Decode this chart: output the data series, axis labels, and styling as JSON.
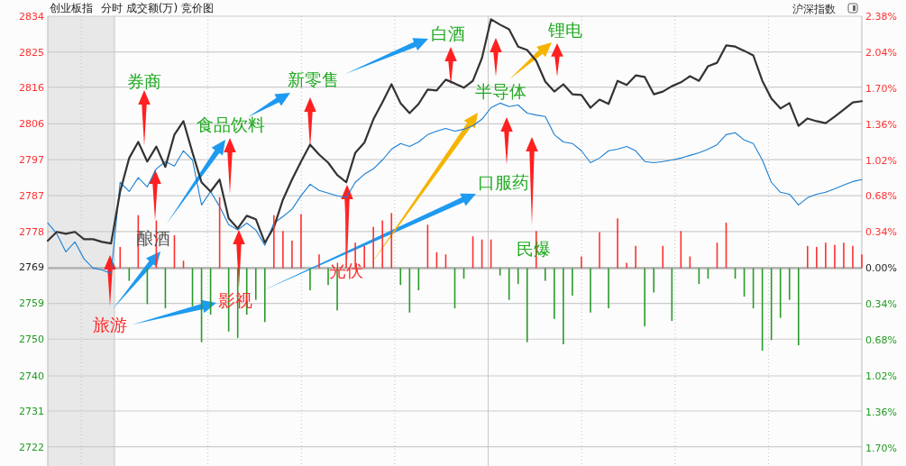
{
  "chart_data": {
    "type": "line",
    "title": "创业板指",
    "subtitle": "分时 成交额(万) 竞价图",
    "categories": [
      null,
      null,
      null,
      null,
      null,
      null,
      null,
      null,
      null,
      null,
      null,
      null,
      null,
      null,
      null,
      null,
      null,
      null,
      null,
      null,
      null,
      null,
      null,
      null,
      null,
      null,
      null,
      null,
      null,
      null,
      null,
      null,
      null,
      null,
      null,
      null,
      null,
      null,
      null,
      null,
      null,
      null,
      null,
      null,
      null,
      null,
      null,
      null,
      null,
      null,
      null,
      null,
      null,
      null,
      null,
      null,
      null,
      null,
      null,
      null,
      null,
      null,
      null,
      null,
      null,
      null,
      null,
      null,
      null,
      null,
      null,
      null,
      null,
      null,
      null,
      null,
      null,
      null,
      null,
      null,
      null,
      null,
      null,
      null,
      null,
      null,
      null,
      null,
      null,
      null,
      null
    ],
    "ylim": [
      2717,
      2834
    ],
    "yticks": [
      2722,
      {
        "value": 2731.3,
        "label": "2731"
      },
      {
        "value": 2740.45,
        "label": "2740"
      },
      2750,
      {
        "value": 2759.3,
        "label": "2759"
      },
      {
        "value": 2768.7,
        "label": "2769"
      },
      2778,
      {
        "value": 2787.3,
        "label": "2787"
      },
      {
        "value": 2796.7,
        "label": "2797"
      },
      2806,
      {
        "value": 2815.55,
        "label": "2816"
      },
      {
        "value": 2824.7,
        "label": "2825"
      },
      2834
    ],
    "y2lim": [
      -1.87,
      2.38
    ],
    "y2ticks": [
      {
        "value": -1.7,
        "label": "1.70%"
      },
      {
        "value": -1.36,
        "label": "1.36%"
      },
      {
        "value": -1.02,
        "label": "1.02%"
      },
      {
        "value": -0.68,
        "label": "0.68%"
      },
      {
        "value": -0.34,
        "label": "0.34%"
      },
      {
        "value": 0,
        "label": "0.00%"
      },
      {
        "value": 0.34,
        "label": "0.34%"
      },
      {
        "value": 0.68,
        "label": "0.68%"
      },
      {
        "value": 1.02,
        "label": "1.02%"
      },
      {
        "value": 1.36,
        "label": "1.36%"
      },
      {
        "value": 1.7,
        "label": "1.70%"
      },
      {
        "value": 2.04,
        "label": "2.04%"
      },
      {
        "value": 2.38,
        "label": "2.38%"
      }
    ],
    "grid": true,
    "ref_lines": [
      {
        "axis": "y2",
        "value": 0,
        "color": "#b4b4b4"
      }
    ],
    "series": [
      {
        "type": "bar",
        "axis": "y2",
        "color": "#ff3030",
        "values": [
          null,
          null,
          null,
          null,
          null,
          null,
          null,
          null,
          0.2,
          null,
          0.5,
          null,
          0.45,
          null,
          0.31,
          0.07,
          null,
          null,
          null,
          0.67,
          null,
          null,
          null,
          null,
          null,
          0.5,
          0.35,
          0.26,
          0.51,
          null,
          0.13,
          null,
          null,
          0.58,
          0.24,
          0.21,
          0.39,
          0.45,
          0.52,
          null,
          null,
          null,
          0.41,
          0.15,
          0.13,
          null,
          null,
          0.3,
          0.27,
          0.27,
          null,
          null,
          null,
          null,
          0.35,
          null,
          null,
          null,
          null,
          0.11,
          null,
          0.34,
          null,
          0.47,
          0.05,
          0.21,
          null,
          null,
          0.21,
          null,
          0.35,
          0.11,
          null,
          null,
          0.24,
          0.43,
          null,
          null,
          null,
          null,
          null,
          null,
          null,
          null,
          0.21,
          0.2,
          0.24,
          0.22,
          0.24,
          0.21,
          0.13
        ]
      },
      {
        "type": "bar",
        "axis": "y2",
        "color": "#2a9a2a",
        "values": [
          null,
          null,
          null,
          null,
          null,
          null,
          null,
          null,
          null,
          -0.12,
          null,
          -0.34,
          null,
          -0.38,
          null,
          null,
          -0.36,
          -0.7,
          -0.44,
          null,
          -0.6,
          -0.66,
          -0.44,
          -0.3,
          -0.51,
          null,
          null,
          null,
          null,
          -0.21,
          null,
          -0.16,
          -0.4,
          null,
          null,
          null,
          null,
          null,
          null,
          -0.16,
          -0.42,
          -0.21,
          null,
          null,
          null,
          -0.38,
          -0.1,
          null,
          null,
          null,
          -0.07,
          -0.3,
          -0.15,
          -0.7,
          null,
          -0.12,
          -0.48,
          -0.72,
          -0.26,
          null,
          -0.42,
          null,
          -0.38,
          null,
          null,
          null,
          -0.55,
          -0.23,
          null,
          -0.5,
          null,
          null,
          -0.15,
          -0.1,
          null,
          null,
          -0.1,
          -0.27,
          -0.38,
          -0.78,
          -0.68,
          -0.47,
          -0.3,
          -0.73,
          null,
          null,
          null,
          null,
          null,
          null,
          null
        ]
      },
      {
        "color": "#1a7fd4",
        "values": [
          2780.2,
          2777.4,
          2772.7,
          2775.3,
          2770.9,
          2768.5,
          2768.0,
          2767.1,
          2790.8,
          2788.4,
          2792.0,
          2789.6,
          2794.3,
          2796.2,
          2795.0,
          2799.0,
          2796.6,
          2784.9,
          2788.4,
          2784.5,
          2779.8,
          2778.4,
          2780.2,
          2778.4,
          2774.4,
          2780.2,
          2781.9,
          2783.8,
          2787.3,
          2790.3,
          2788.7,
          2788.0,
          2787.3,
          2786.8,
          2790.8,
          2792.9,
          2794.3,
          2796.6,
          2799.4,
          2800.9,
          2800.1,
          2801.3,
          2803.2,
          2804.1,
          2804.8,
          2804.1,
          2804.6,
          2805.5,
          2807.2,
          2810.2,
          2811.4,
          2810.5,
          2810.9,
          2808.8,
          2808.3,
          2807.9,
          2803.2,
          2801.3,
          2800.9,
          2799.0,
          2795.9,
          2797.1,
          2799.0,
          2799.4,
          2800.1,
          2799.0,
          2796.2,
          2795.9,
          2796.2,
          2796.6,
          2797.1,
          2797.8,
          2798.5,
          2799.4,
          2800.6,
          2803.2,
          2803.7,
          2801.8,
          2800.9,
          2796.6,
          2790.8,
          2788.2,
          2787.7,
          2784.9,
          2786.8,
          2787.7,
          2788.2,
          2789.1,
          2790.1,
          2791.0,
          2791.5
        ]
      },
      {
        "color": "#333333",
        "values": [
          2775.6,
          2777.9,
          2777.4,
          2777.9,
          2776.0,
          2776.0,
          2775.3,
          2774.9,
          2788.4,
          2797.1,
          2801.3,
          2796.2,
          2800.1,
          2794.8,
          2803.2,
          2806.7,
          2798.5,
          2790.8,
          2788.4,
          2791.5,
          2781.4,
          2778.8,
          2782.1,
          2781.2,
          2775.1,
          2779.1,
          2786.3,
          2791.5,
          2796.2,
          2800.6,
          2798.0,
          2795.9,
          2792.7,
          2790.8,
          2798.5,
          2801.1,
          2807.2,
          2811.6,
          2816.3,
          2811.4,
          2808.8,
          2811.2,
          2814.9,
          2814.7,
          2817.5,
          2816.5,
          2815.4,
          2817.2,
          2823.1,
          2833.2,
          2831.8,
          2830.6,
          2826.1,
          2825.2,
          2822.4,
          2817.0,
          2814.4,
          2816.3,
          2813.7,
          2813.5,
          2810.2,
          2812.3,
          2811.2,
          2817.2,
          2816.1,
          2818.6,
          2818.2,
          2813.7,
          2814.4,
          2815.8,
          2816.8,
          2818.4,
          2817.2,
          2821.0,
          2821.9,
          2826.4,
          2826.1,
          2825.0,
          2823.8,
          2817.2,
          2812.6,
          2810.0,
          2811.4,
          2805.5,
          2807.4,
          2806.7,
          2806.2,
          2807.9,
          2809.7,
          2811.6,
          2811.9
        ]
      }
    ],
    "annotations": [
      "券商",
      "食品饮料",
      "新零售",
      "白酒",
      "锂电",
      "半导体",
      "酿酒",
      "旅游",
      "影视",
      "光伏",
      "口服药",
      "民爆",
      "沪深指数"
    ]
  }
}
